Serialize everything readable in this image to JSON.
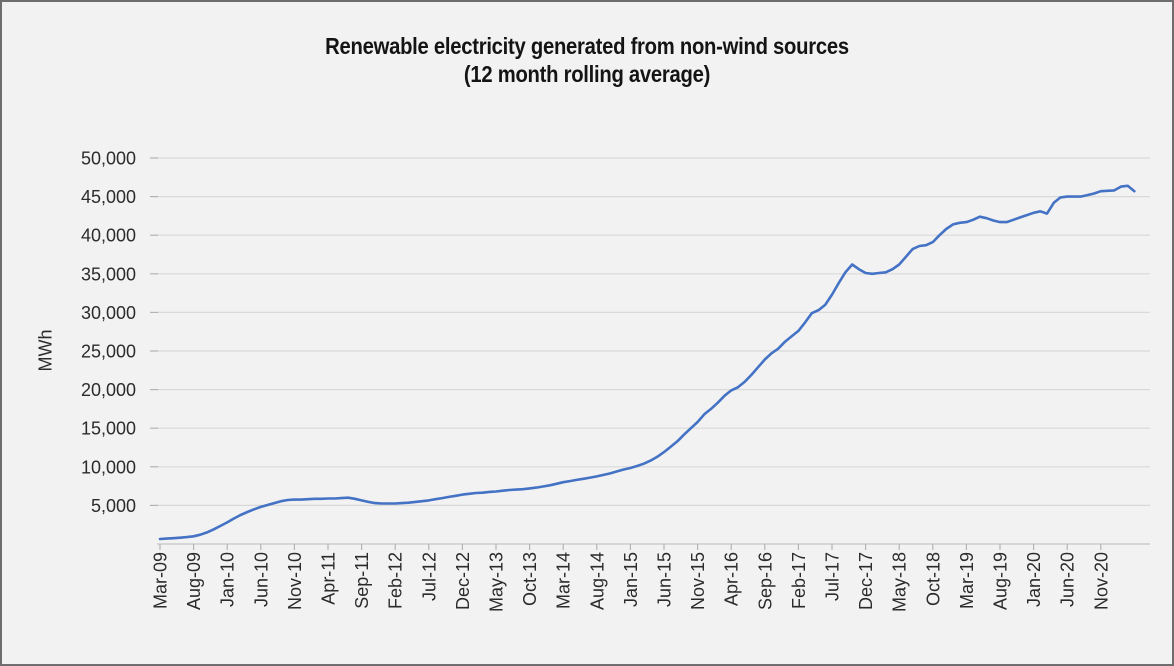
{
  "window": {
    "background_color": "#f2f2f2",
    "border_color": "#6e6e6e"
  },
  "chart_data": {
    "type": "line",
    "title": "Renewable electricity generated from non-wind sources",
    "subtitle": "(12 month rolling average)",
    "ylabel": "MWh",
    "xlabel": "",
    "legend": "none",
    "grid": "horizontal",
    "ylim": [
      0,
      52000
    ],
    "y_tick_labels": [
      "5,000",
      "10,000",
      "15,000",
      "20,000",
      "25,000",
      "30,000",
      "35,000",
      "40,000",
      "45,000",
      "50,000"
    ],
    "x_tick_labels": [
      "Mar-09",
      "Aug-09",
      "Jan-10",
      "Jun-10",
      "Nov-10",
      "Apr-11",
      "Sep-11",
      "Feb-12",
      "Jul-12",
      "Dec-12",
      "May-13",
      "Oct-13",
      "Mar-14",
      "Aug-14",
      "Jan-15",
      "Jun-15",
      "Nov-15",
      "Apr-16",
      "Sep-16",
      "Feb-17",
      "Jul-17",
      "Dec-17",
      "May-18",
      "Oct-18",
      "Mar-19",
      "Aug-19",
      "Jan-20",
      "Jun-20",
      "Nov-20"
    ],
    "x_start": "Mar-09",
    "x_end": "Apr-21",
    "x_frequency": "monthly",
    "line_color": "#4472c4",
    "gridline_color": "#d9d9d9",
    "axis_line_color": "#c6c6c6",
    "tick_color": "#b3b3b3",
    "label_color": "#2b2b2b",
    "values": [
      650,
      700,
      750,
      820,
      900,
      1000,
      1200,
      1500,
      1900,
      2350,
      2800,
      3300,
      3750,
      4150,
      4500,
      4800,
      5050,
      5300,
      5550,
      5700,
      5750,
      5750,
      5800,
      5850,
      5850,
      5900,
      5900,
      5950,
      6000,
      5850,
      5650,
      5450,
      5300,
      5250,
      5250,
      5250,
      5300,
      5350,
      5450,
      5550,
      5650,
      5800,
      5950,
      6100,
      6250,
      6400,
      6500,
      6600,
      6650,
      6750,
      6800,
      6900,
      7000,
      7050,
      7100,
      7200,
      7300,
      7450,
      7600,
      7800,
      8000,
      8150,
      8300,
      8450,
      8600,
      8750,
      8950,
      9150,
      9400,
      9650,
      9850,
      10100,
      10400,
      10800,
      11300,
      11900,
      12600,
      13300,
      14200,
      15000,
      15800,
      16800,
      17500,
      18300,
      19200,
      19900,
      20300,
      21000,
      21900,
      22900,
      23900,
      24700,
      25300,
      26200,
      26900,
      27600,
      28700,
      29900,
      30300,
      31000,
      32300,
      33800,
      35200,
      36200,
      35600,
      35100,
      35000,
      35100,
      35200,
      35600,
      36200,
      37200,
      38200,
      38600,
      38700,
      39100,
      40000,
      40800,
      41400,
      41600,
      41700,
      42000,
      42400,
      42200,
      41900,
      41700,
      41700,
      42000,
      42300,
      42600,
      42900,
      43100,
      42800,
      44200,
      44900,
      45000,
      45000,
      45000,
      45200,
      45400,
      45700,
      45750,
      45800,
      46300,
      46400,
      45700
    ]
  }
}
